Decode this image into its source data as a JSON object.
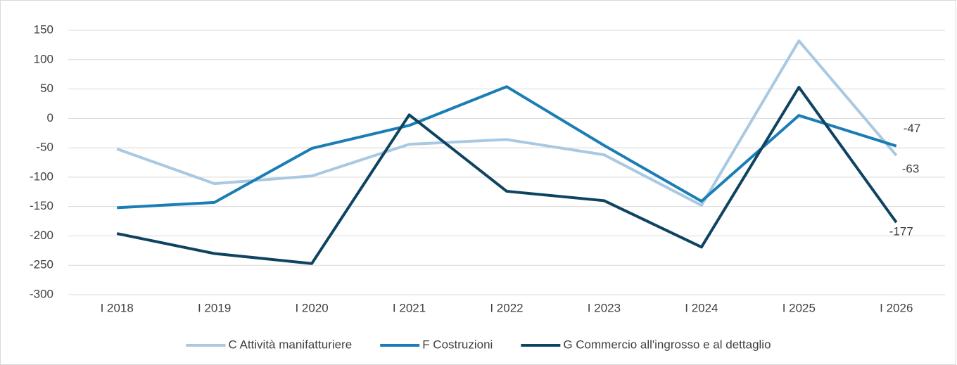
{
  "chart_data": {
    "type": "line",
    "categories": [
      "I 2018",
      "I 2019",
      "I 2020",
      "I 2021",
      "I 2022",
      "I 2023",
      "I 2024",
      "I 2025",
      "I 2026"
    ],
    "series": [
      {
        "name": "C Attività manifatturiere",
        "color": "#a9c9e2",
        "values": [
          -52,
          -111,
          -98,
          -44,
          -36,
          -62,
          -148,
          132,
          -63
        ],
        "value_labels": [
          null,
          null,
          null,
          null,
          null,
          null,
          null,
          null,
          "-63"
        ]
      },
      {
        "name": "F Costruzioni",
        "color": "#1a7db4",
        "values": [
          -152,
          -143,
          -51,
          -12,
          54,
          -46,
          -141,
          5,
          -47
        ],
        "value_labels": [
          null,
          null,
          null,
          null,
          null,
          null,
          null,
          null,
          "-47"
        ]
      },
      {
        "name": "G Commercio all'ingrosso e al dettaglio",
        "color": "#0e4461",
        "values": [
          -196,
          -230,
          -247,
          6,
          -124,
          -140,
          -219,
          53,
          -177
        ],
        "value_labels": [
          null,
          null,
          null,
          null,
          null,
          null,
          null,
          null,
          "-177"
        ]
      }
    ],
    "ylim": [
      -300,
      150
    ],
    "yticks": [
      -300,
      -250,
      -200,
      -150,
      -100,
      -50,
      0,
      50,
      100,
      150
    ],
    "grid": true,
    "legend": "bottom"
  }
}
